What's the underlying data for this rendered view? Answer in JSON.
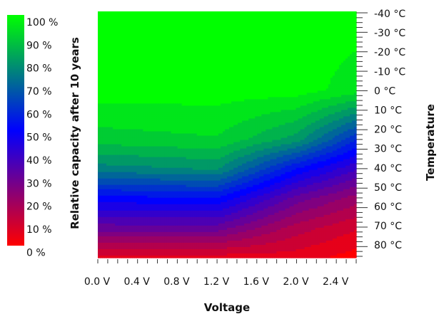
{
  "chart_data": {
    "type": "heatmap",
    "title": "",
    "xlabel": "Voltage",
    "ylabel": "Temperature",
    "colorbar_label": "Relative capacity after 10 years",
    "x_ticks": [
      "0.0 V",
      "0.4 V",
      "0.8 V",
      "1.2 V",
      "1.6 V",
      "2.0 V",
      "2.4 V"
    ],
    "xlim": [
      0.0,
      2.6
    ],
    "y_ticks": [
      "-40 °C",
      "-30 °C",
      "-20 °C",
      "-10 °C",
      "0 °C",
      "10 °C",
      "20 °C",
      "30 °C",
      "40 °C",
      "50 °C",
      "60 °C",
      "70 °C",
      "80 °C"
    ],
    "ylim": [
      -40,
      85
    ],
    "colorbar_ticks": [
      "100 %",
      "90 %",
      "80 %",
      "70 %",
      "60 %",
      "50 %",
      "40 %",
      "30 %",
      "20 %",
      "10 %",
      "0 %"
    ],
    "colorbar_range": [
      0,
      100
    ],
    "colormap": [
      {
        "value": 0,
        "color": "#ff0000"
      },
      {
        "value": 50,
        "color": "#0000ff"
      },
      {
        "value": 100,
        "color": "#00ff00"
      }
    ],
    "contour_levels": 20,
    "z_description_columns": [
      "voltage_V",
      "temperature_C",
      "capacity_pct"
    ],
    "z_samples": [
      [
        0.0,
        -40,
        100
      ],
      [
        0.0,
        0,
        100
      ],
      [
        0.0,
        25,
        90
      ],
      [
        0.0,
        40,
        75
      ],
      [
        0.0,
        55,
        50
      ],
      [
        0.0,
        70,
        30
      ],
      [
        0.0,
        85,
        5
      ],
      [
        1.2,
        -40,
        100
      ],
      [
        1.2,
        0,
        100
      ],
      [
        1.2,
        25,
        92
      ],
      [
        1.2,
        40,
        78
      ],
      [
        1.2,
        55,
        52
      ],
      [
        1.2,
        70,
        30
      ],
      [
        1.2,
        85,
        5
      ],
      [
        2.0,
        -40,
        100
      ],
      [
        2.0,
        0,
        100
      ],
      [
        2.0,
        25,
        80
      ],
      [
        2.0,
        40,
        52
      ],
      [
        2.0,
        55,
        30
      ],
      [
        2.0,
        70,
        15
      ],
      [
        2.0,
        85,
        5
      ],
      [
        2.6,
        -40,
        100
      ],
      [
        2.6,
        0,
        95
      ],
      [
        2.6,
        25,
        58
      ],
      [
        2.6,
        40,
        38
      ],
      [
        2.6,
        55,
        20
      ],
      [
        2.6,
        70,
        8
      ],
      [
        2.6,
        85,
        0
      ]
    ]
  }
}
